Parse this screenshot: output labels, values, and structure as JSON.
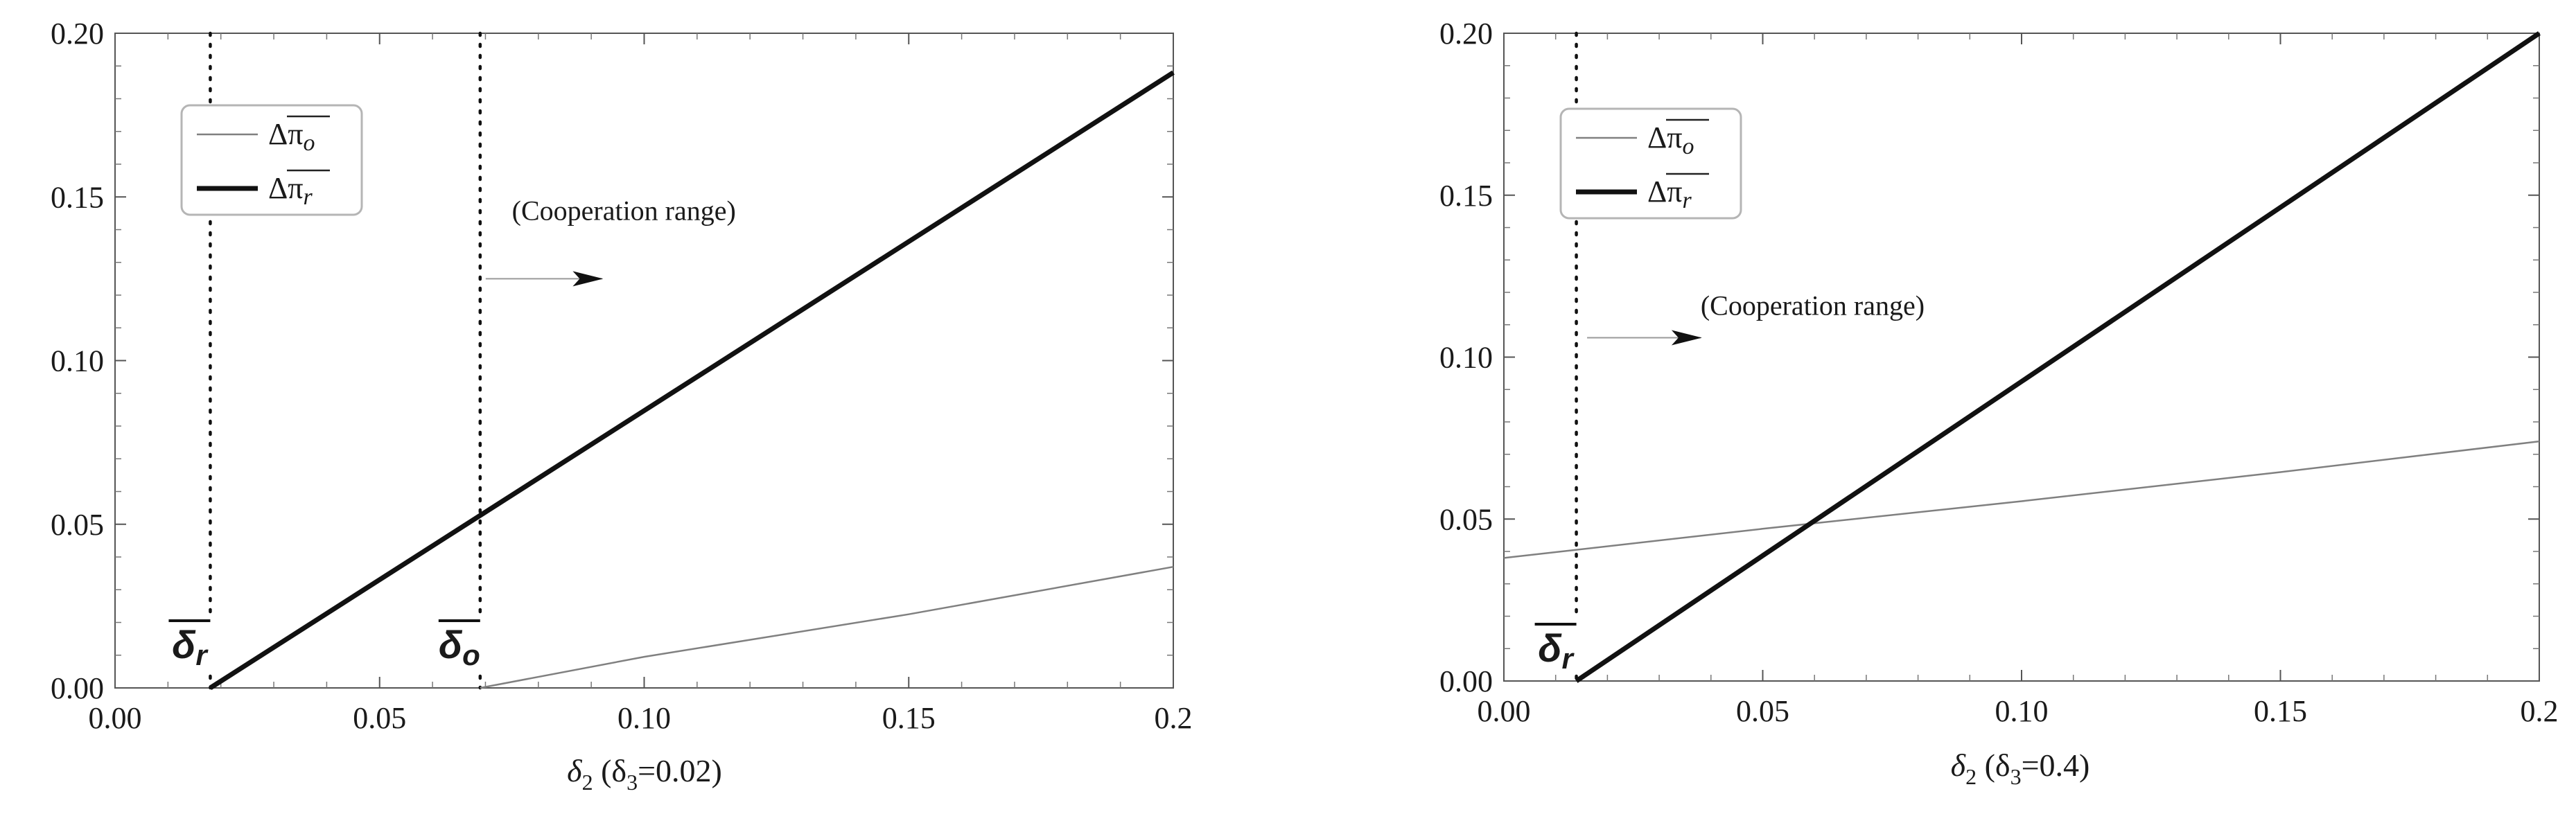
{
  "chart_data": [
    {
      "type": "line",
      "xlabel": "δ2 (δ3=0.02)",
      "xlabel_parts": {
        "base": "δ",
        "sub": "2",
        "rest_open": " (δ",
        "rest_sub": "3",
        "rest_close": "=0.02)"
      },
      "xlim": [
        0,
        0.2
      ],
      "ylim": [
        0,
        0.2
      ],
      "x_ticks": [
        "0.00",
        "0.05",
        "0.10",
        "0.15",
        "0.2"
      ],
      "y_ticks": [
        "0.00",
        "0.05",
        "0.10",
        "0.15",
        "0.20"
      ],
      "legend": {
        "position": "top-left",
        "entries": [
          {
            "label_main": "Δπ",
            "label_sub": "o",
            "style": "thin",
            "color": "#808080"
          },
          {
            "label_main": "Δπ",
            "label_sub": "r",
            "style": "thick",
            "color": "#111111"
          }
        ]
      },
      "series": [
        {
          "style": "thin",
          "x": [
            0.069,
            0.1,
            0.15,
            0.2
          ],
          "y": [
            0.0,
            0.0095,
            0.0225,
            0.037
          ]
        },
        {
          "style": "thick",
          "x": [
            0.018,
            0.2
          ],
          "y": [
            0.0,
            0.188
          ]
        }
      ],
      "thresholds": [
        {
          "x": 0.018,
          "symbol": "δ",
          "sub": "r"
        },
        {
          "x": 0.069,
          "symbol": "δ",
          "sub": "o"
        }
      ],
      "annotation": {
        "text": "(Cooperation range)",
        "arrow_x": [
          0.069,
          0.092
        ],
        "arrow_y": 0.125,
        "text_x": 0.075,
        "text_y": 0.143
      }
    },
    {
      "type": "line",
      "xlabel": "δ2 (δ3=0.4)",
      "xlabel_parts": {
        "base": "δ",
        "sub": "2",
        "rest_open": " (δ",
        "rest_sub": "3",
        "rest_close": "=0.4)"
      },
      "xlim": [
        0,
        0.2
      ],
      "ylim": [
        0,
        0.2
      ],
      "x_ticks": [
        "0.00",
        "0.05",
        "0.10",
        "0.15",
        "0.2"
      ],
      "y_ticks": [
        "0.00",
        "0.05",
        "0.10",
        "0.15",
        "0.20"
      ],
      "legend": {
        "position": "top-left",
        "entries": [
          {
            "label_main": "Δπ",
            "label_sub": "o",
            "style": "thin",
            "color": "#808080"
          },
          {
            "label_main": "Δπ",
            "label_sub": "r",
            "style": "thick",
            "color": "#111111"
          }
        ]
      },
      "series": [
        {
          "style": "thin",
          "x": [
            0.0,
            0.05,
            0.1,
            0.15,
            0.2
          ],
          "y": [
            0.038,
            0.047,
            0.0555,
            0.0645,
            0.074
          ]
        },
        {
          "style": "thick",
          "x": [
            0.014,
            0.2
          ],
          "y": [
            0.0,
            0.2
          ]
        }
      ],
      "thresholds": [
        {
          "x": 0.014,
          "symbol": "δ",
          "sub": "r"
        }
      ],
      "annotation": {
        "text": "(Cooperation range)",
        "arrow_x": [
          0.015,
          0.038
        ],
        "arrow_y": 0.106,
        "text_x": 0.038,
        "text_y": 0.113
      }
    }
  ]
}
